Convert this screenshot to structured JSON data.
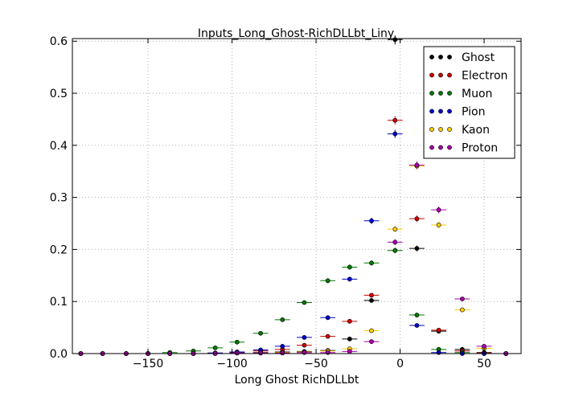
{
  "chart_data": {
    "type": "scatter",
    "title": "Inputs_Long_Ghost-RichDLLbt_Liny",
    "xlabel": "Long Ghost RichDLLbt",
    "ylabel": "",
    "xlim": [
      -195,
      72
    ],
    "ylim": [
      0,
      0.605
    ],
    "x_ticks": [
      -150,
      -100,
      -50,
      0,
      50
    ],
    "x_tick_labels": [
      "−150",
      "−100",
      "−50",
      "0",
      "50"
    ],
    "y_ticks": [
      0.0,
      0.1,
      0.2,
      0.3,
      0.4,
      0.5,
      0.6
    ],
    "y_tick_labels": [
      "0.0",
      "0.1",
      "0.2",
      "0.3",
      "0.4",
      "0.5",
      "0.6"
    ],
    "grid": true,
    "legend_position": "top-right",
    "bin_half_width": 4.5,
    "series": [
      {
        "name": "Ghost",
        "color": "#000000",
        "points": [
          [
            -190,
            0.0
          ],
          [
            -177,
            0.0
          ],
          [
            -163,
            0.0
          ],
          [
            -150,
            0.0
          ],
          [
            -137,
            0.0
          ],
          [
            -123,
            0.0
          ],
          [
            -110,
            0.001
          ],
          [
            -97,
            0.002
          ],
          [
            -83,
            0.002
          ],
          [
            -70,
            0.003
          ],
          [
            -57,
            0.004
          ],
          [
            -43,
            0.006
          ],
          [
            -30,
            0.028
          ],
          [
            -17,
            0.102
          ],
          [
            -3,
            0.603
          ],
          [
            10,
            0.202
          ],
          [
            23,
            0.043
          ],
          [
            37,
            0.008
          ],
          [
            50,
            0.002
          ],
          [
            63,
            0.0
          ]
        ]
      },
      {
        "name": "Electron",
        "color": "#cc0000",
        "points": [
          [
            -190,
            0.0
          ],
          [
            -177,
            0.0
          ],
          [
            -163,
            0.0
          ],
          [
            -150,
            0.0
          ],
          [
            -137,
            0.0
          ],
          [
            -123,
            0.0
          ],
          [
            -110,
            0.001
          ],
          [
            -97,
            0.003
          ],
          [
            -83,
            0.005
          ],
          [
            -70,
            0.008
          ],
          [
            -57,
            0.016
          ],
          [
            -43,
            0.033
          ],
          [
            -30,
            0.062
          ],
          [
            -17,
            0.112
          ],
          [
            -3,
            0.448
          ],
          [
            10,
            0.259
          ],
          [
            23,
            0.045
          ],
          [
            37,
            0.005
          ],
          [
            50,
            0.001
          ],
          [
            63,
            0.0
          ]
        ]
      },
      {
        "name": "Muon",
        "color": "#007700",
        "points": [
          [
            -190,
            0.0
          ],
          [
            -177,
            0.0
          ],
          [
            -163,
            0.0
          ],
          [
            -150,
            0.0
          ],
          [
            -137,
            0.002
          ],
          [
            -123,
            0.005
          ],
          [
            -110,
            0.011
          ],
          [
            -97,
            0.022
          ],
          [
            -83,
            0.039
          ],
          [
            -70,
            0.065
          ],
          [
            -57,
            0.098
          ],
          [
            -43,
            0.14
          ],
          [
            -30,
            0.166
          ],
          [
            -17,
            0.174
          ],
          [
            -3,
            0.198
          ],
          [
            10,
            0.074
          ],
          [
            23,
            0.008
          ],
          [
            37,
            0.002
          ],
          [
            50,
            0.0
          ],
          [
            63,
            0.0
          ]
        ]
      },
      {
        "name": "Pion",
        "color": "#0000cc",
        "points": [
          [
            -190,
            0.0
          ],
          [
            -177,
            0.0
          ],
          [
            -163,
            0.0
          ],
          [
            -150,
            0.0
          ],
          [
            -137,
            0.0
          ],
          [
            -123,
            0.0
          ],
          [
            -110,
            0.001
          ],
          [
            -97,
            0.003
          ],
          [
            -83,
            0.007
          ],
          [
            -70,
            0.014
          ],
          [
            -57,
            0.031
          ],
          [
            -43,
            0.069
          ],
          [
            -30,
            0.143
          ],
          [
            -17,
            0.255
          ],
          [
            -3,
            0.422
          ],
          [
            10,
            0.054
          ],
          [
            23,
            0.002
          ],
          [
            37,
            0.0
          ],
          [
            50,
            0.0
          ],
          [
            63,
            0.0
          ]
        ]
      },
      {
        "name": "Kaon",
        "color": "#ffcc00",
        "points": [
          [
            -190,
            0.0
          ],
          [
            -177,
            0.0
          ],
          [
            -163,
            0.0
          ],
          [
            -150,
            0.0
          ],
          [
            -137,
            0.0
          ],
          [
            -123,
            0.0
          ],
          [
            -110,
            0.0
          ],
          [
            -97,
            0.001
          ],
          [
            -83,
            0.001
          ],
          [
            -70,
            0.002
          ],
          [
            -57,
            0.003
          ],
          [
            -43,
            0.005
          ],
          [
            -30,
            0.009
          ],
          [
            -17,
            0.044
          ],
          [
            -3,
            0.239
          ],
          [
            10,
            0.36
          ],
          [
            23,
            0.247
          ],
          [
            37,
            0.084
          ],
          [
            50,
            0.01
          ],
          [
            63,
            0.0
          ]
        ]
      },
      {
        "name": "Proton",
        "color": "#aa00aa",
        "points": [
          [
            -190,
            0.0
          ],
          [
            -177,
            0.0
          ],
          [
            -163,
            0.0
          ],
          [
            -150,
            0.0
          ],
          [
            -137,
            0.0
          ],
          [
            -123,
            0.0
          ],
          [
            -110,
            0.0
          ],
          [
            -97,
            0.001
          ],
          [
            -83,
            0.001
          ],
          [
            -70,
            0.001
          ],
          [
            -57,
            0.002
          ],
          [
            -43,
            0.002
          ],
          [
            -30,
            0.004
          ],
          [
            -17,
            0.023
          ],
          [
            -3,
            0.214
          ],
          [
            10,
            0.362
          ],
          [
            23,
            0.276
          ],
          [
            37,
            0.105
          ],
          [
            50,
            0.014
          ],
          [
            63,
            0.0
          ]
        ]
      }
    ]
  }
}
